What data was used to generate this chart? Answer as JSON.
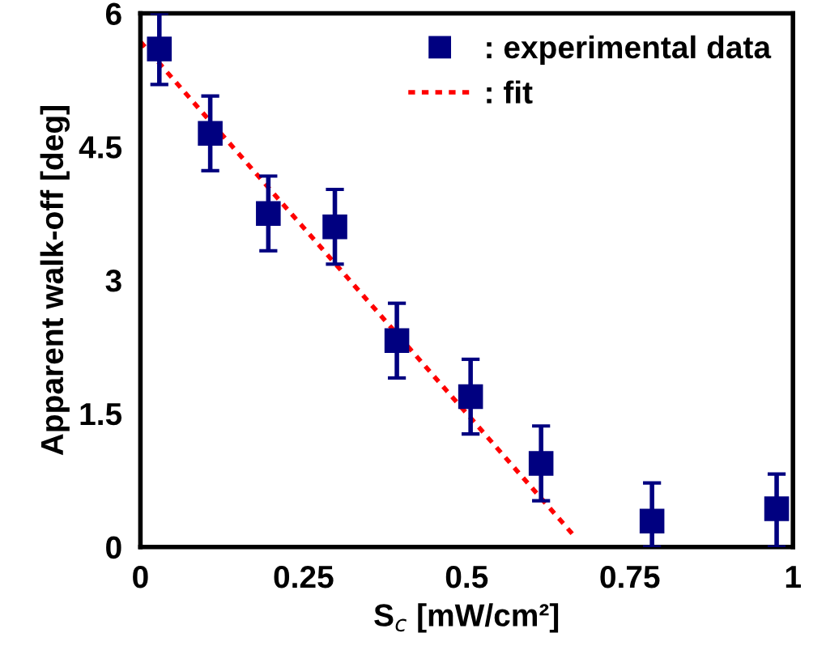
{
  "chart_data": {
    "type": "scatter",
    "xlabel": "S$_{c}$ [mW/cm²]",
    "ylabel": "Apparent walk-off [deg]",
    "xlim": [
      0,
      1
    ],
    "xticks": [
      0,
      0.25,
      0.5,
      0.75,
      1
    ],
    "ylim": [
      0,
      6
    ],
    "yticks": [
      0,
      1.5,
      3,
      4.5,
      6
    ],
    "grid": false,
    "legend": "top right",
    "marker": "square",
    "series": [
      {
        "name": ": experimental data",
        "color": "#000080",
        "x": [
          0.029,
          0.107,
          0.196,
          0.298,
          0.393,
          0.506,
          0.614,
          0.784,
          0.975
        ],
        "values": [
          5.6,
          4.65,
          3.75,
          3.6,
          2.32,
          1.69,
          0.94,
          0.29,
          0.43
        ],
        "errors": [
          0.4,
          0.42,
          0.42,
          0.42,
          0.42,
          0.42,
          0.42,
          [
            0,
            0.72
          ],
          [
            0,
            0.82
          ]
        ]
      },
      {
        "name": ": fit",
        "color": "#ff0000",
        "type": "line",
        "line_style": "dotted",
        "marker": "none",
        "x": [
          0,
          0.664
        ],
        "values": [
          5.68,
          0.13
        ]
      }
    ]
  }
}
